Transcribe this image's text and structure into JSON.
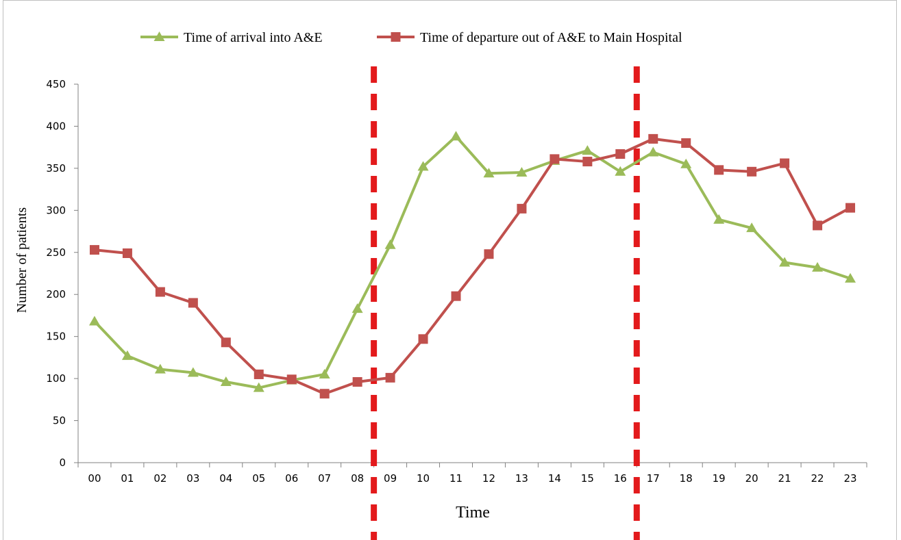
{
  "chart_data": {
    "type": "line",
    "title": "",
    "xlabel": "Time",
    "ylabel": "Number of patients",
    "categories": [
      "00",
      "01",
      "02",
      "03",
      "04",
      "05",
      "06",
      "07",
      "08",
      "09",
      "10",
      "11",
      "12",
      "13",
      "14",
      "15",
      "16",
      "17",
      "18",
      "19",
      "20",
      "21",
      "22",
      "23"
    ],
    "ylim": [
      0,
      450
    ],
    "yticks": [
      0,
      50,
      100,
      150,
      200,
      250,
      300,
      350,
      400,
      450
    ],
    "grid": false,
    "legend_position": "top",
    "series": [
      {
        "name": "Time of arrival into A&E",
        "marker": "triangle",
        "color": "#9bbb59",
        "values": [
          168,
          127,
          111,
          107,
          96,
          89,
          98,
          105,
          183,
          259,
          352,
          388,
          344,
          345,
          359,
          371,
          346,
          369,
          355,
          289,
          279,
          238,
          232,
          219
        ]
      },
      {
        "name": "Time of departure out of A&E to Main Hospital",
        "marker": "square",
        "color": "#c0504d",
        "values": [
          253,
          249,
          203,
          190,
          143,
          105,
          99,
          82,
          96,
          101,
          147,
          198,
          248,
          302,
          361,
          358,
          367,
          385,
          380,
          348,
          346,
          356,
          282,
          303
        ]
      }
    ],
    "reference_lines": [
      {
        "x_between": [
          "08",
          "09"
        ],
        "color": "#e31a1c",
        "style": "dashed"
      },
      {
        "x_between": [
          "16",
          "17"
        ],
        "color": "#e31a1c",
        "style": "dashed"
      }
    ]
  }
}
